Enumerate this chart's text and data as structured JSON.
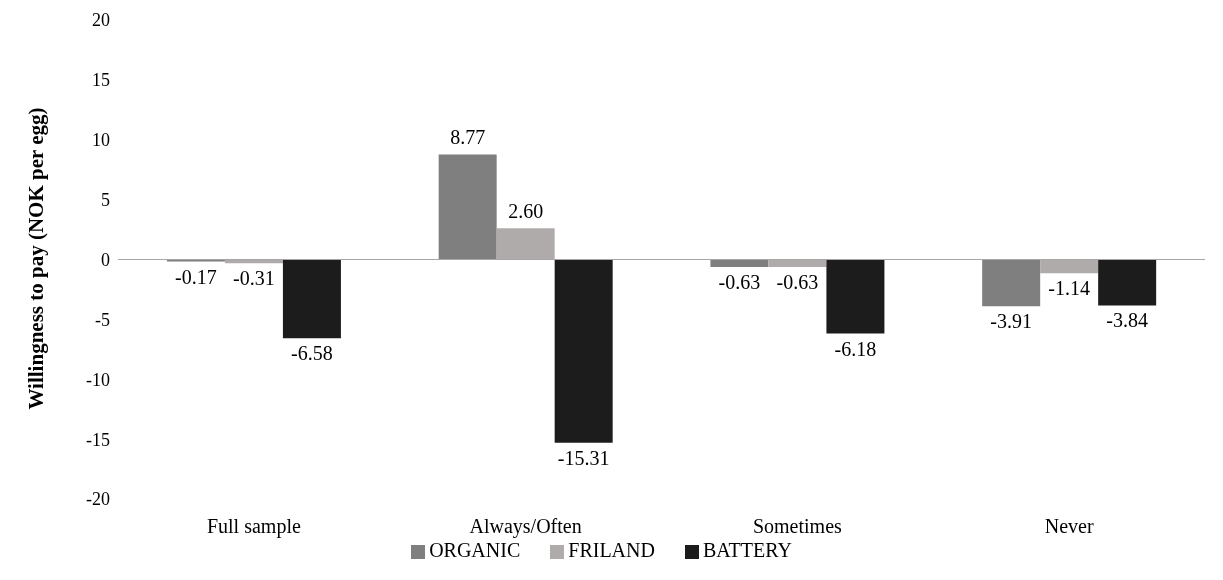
{
  "chart_data": {
    "type": "bar",
    "ylabel": "Willingness to pay (NOK per egg)",
    "categories": [
      "Full sample",
      "Always/Often",
      "Sometimes",
      "Never"
    ],
    "series": [
      {
        "name": "ORGANIC",
        "color": "#7f7f7f",
        "values": [
          -0.17,
          8.77,
          -0.63,
          -3.91
        ],
        "value_labels": [
          "-0.17",
          "8.77",
          "-0.63",
          "-3.91"
        ]
      },
      {
        "name": "FRILAND",
        "color": "#afabab",
        "values": [
          -0.31,
          2.6,
          -0.63,
          -1.14
        ],
        "value_labels": [
          "-0.31",
          "2.60",
          "-0.63",
          "-1.14"
        ]
      },
      {
        "name": "BATTERY",
        "color": "#1c1c1c",
        "values": [
          -6.58,
          -15.31,
          -6.18,
          -3.84
        ],
        "value_labels": [
          "-6.58",
          "-15.31",
          "-6.18",
          "-3.84"
        ]
      }
    ],
    "ylim": [
      -20,
      20
    ],
    "yticks": [
      -20,
      -15,
      -10,
      -5,
      0,
      5,
      10,
      15,
      20
    ],
    "legend": "bottom"
  }
}
